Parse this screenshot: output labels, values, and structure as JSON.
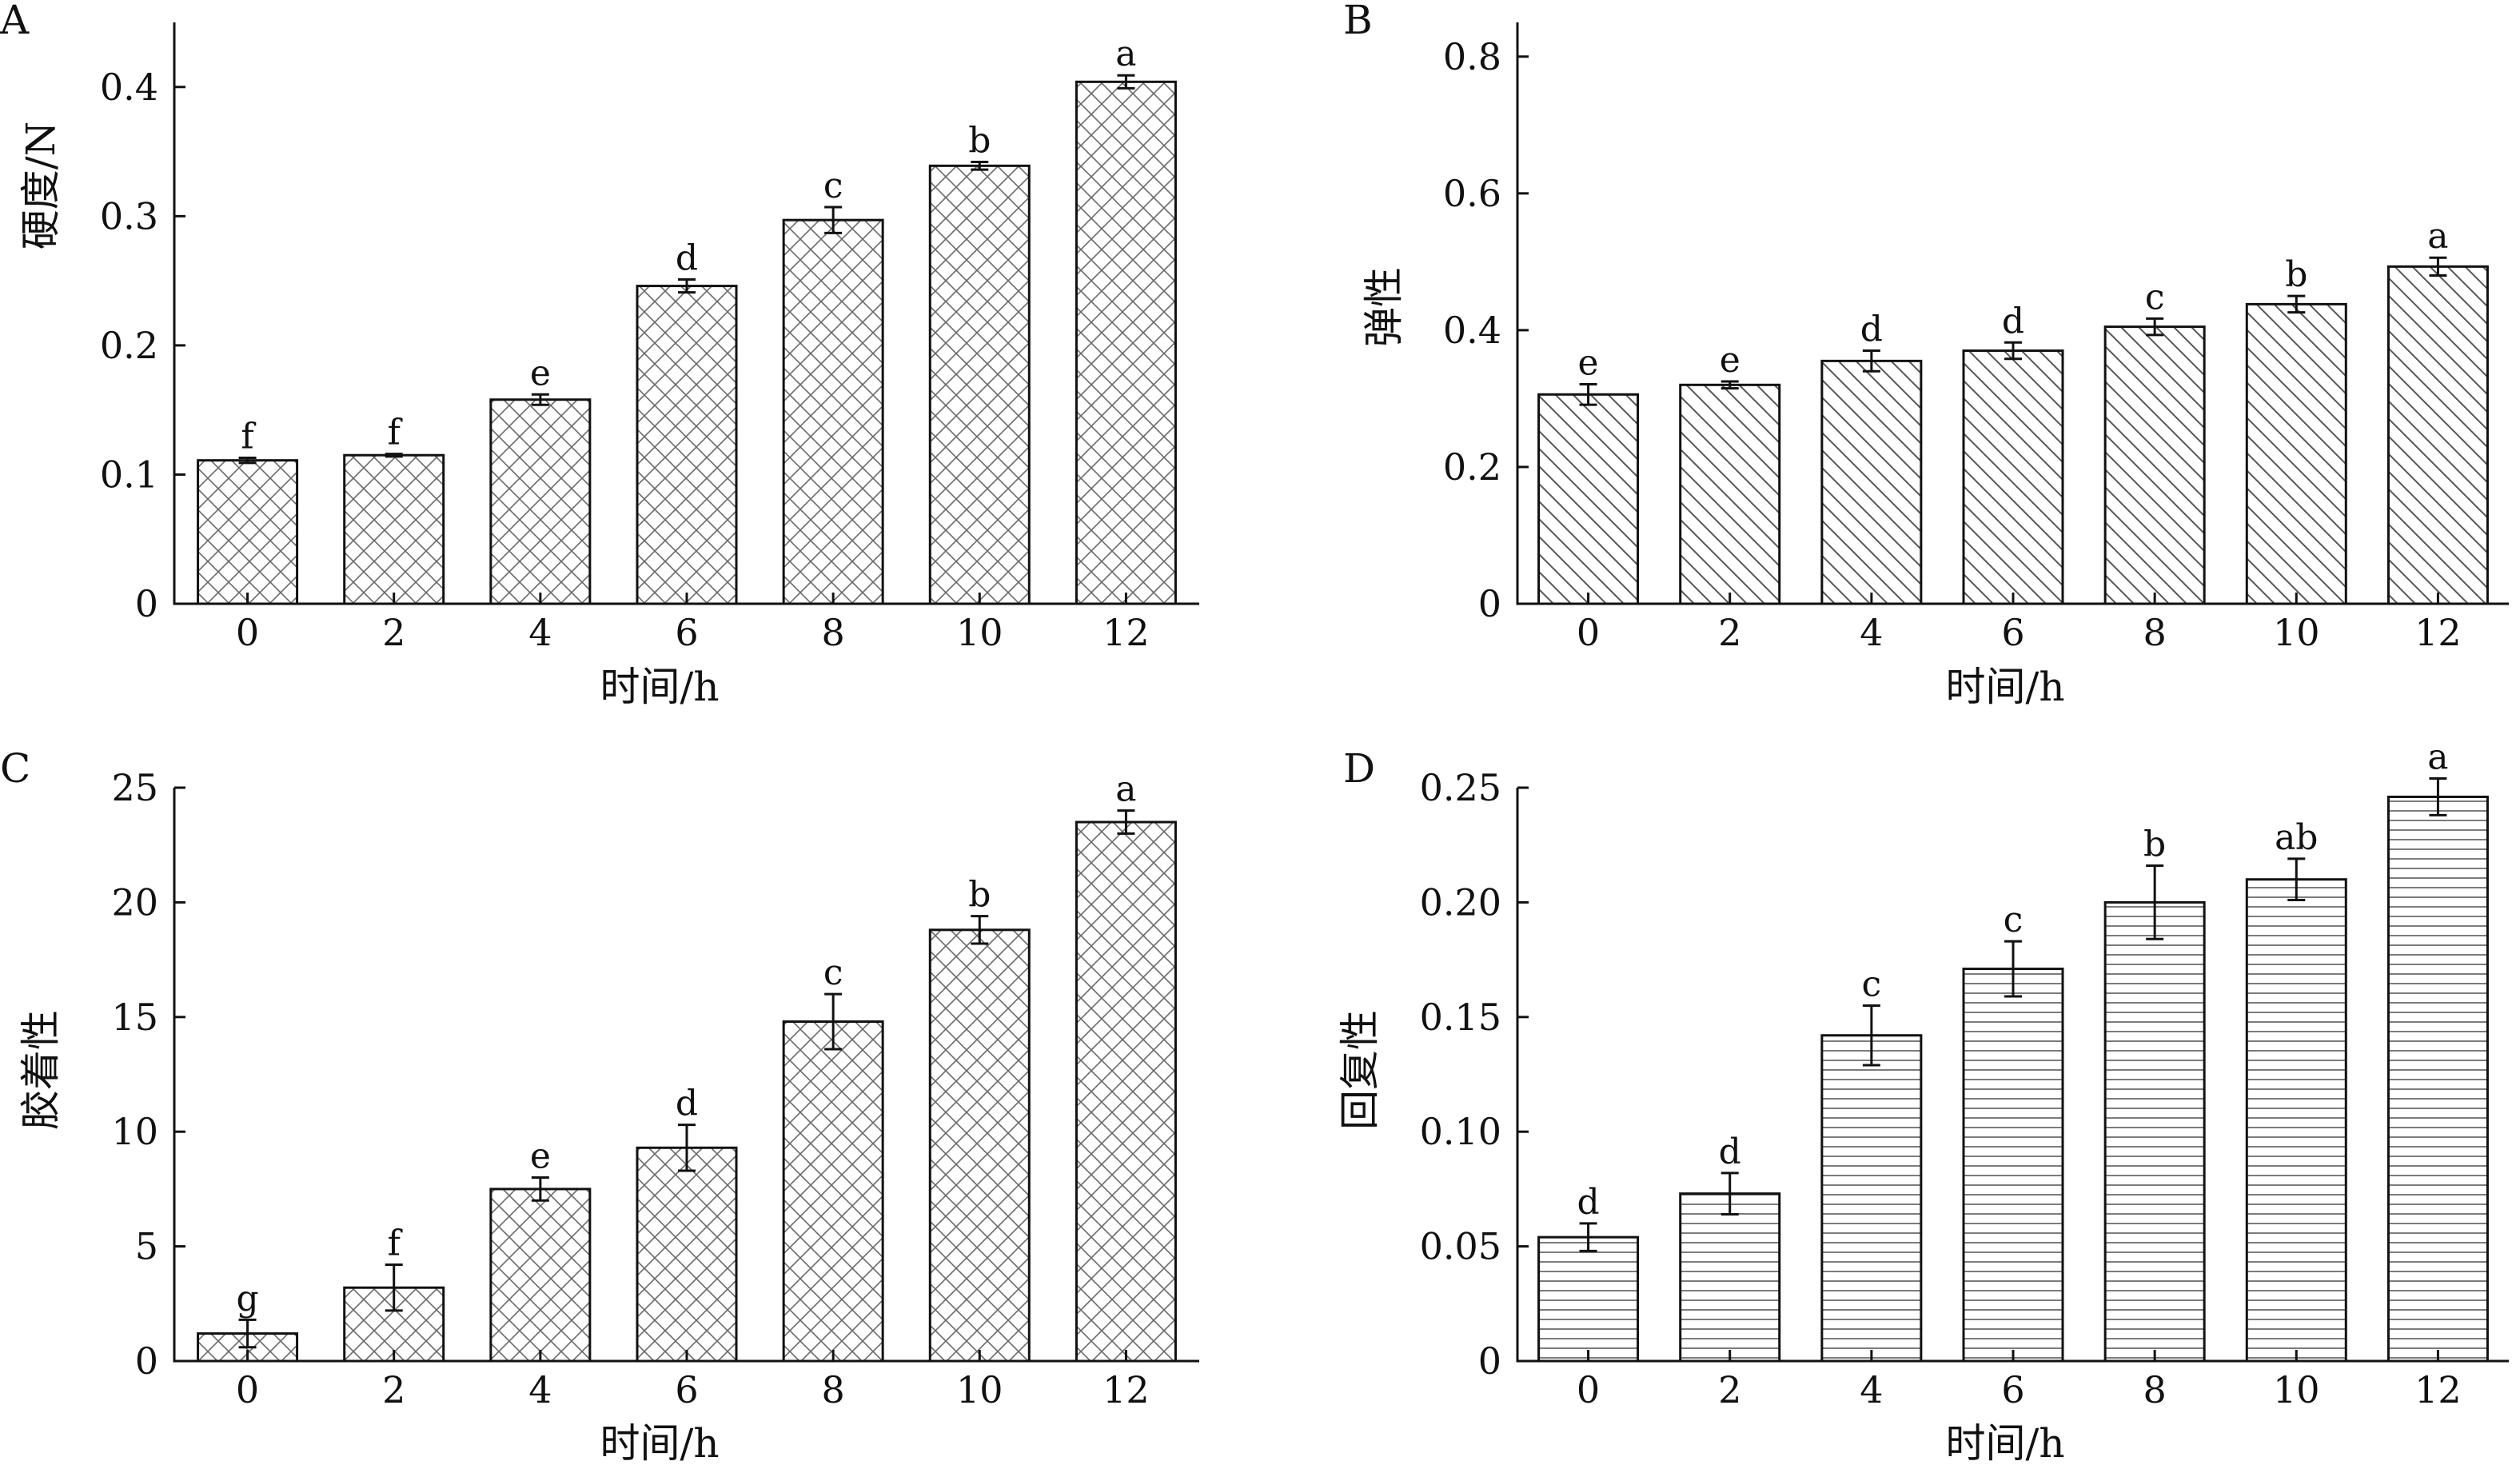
{
  "chart_data": [
    {
      "panel": "A",
      "type": "bar",
      "xlabel": "时间/h",
      "ylabel": "硬度/N",
      "categories": [
        "0",
        "2",
        "4",
        "6",
        "8",
        "10",
        "12"
      ],
      "values": [
        0.111,
        0.115,
        0.158,
        0.246,
        0.297,
        0.339,
        0.404
      ],
      "errors": [
        0.002,
        0.001,
        0.004,
        0.005,
        0.01,
        0.003,
        0.005
      ],
      "labels": [
        "f",
        "f",
        "e",
        "d",
        "c",
        "b",
        "a"
      ],
      "ylim": [
        0,
        0.45
      ],
      "yticks": [
        0,
        0.1,
        0.2,
        0.3,
        0.4
      ],
      "ytick_labels": [
        "0",
        "0.1",
        "0.2",
        "0.3",
        "0.4"
      ],
      "pattern": "crosshatch",
      "grid": false
    },
    {
      "panel": "B",
      "type": "bar",
      "xlabel": "时间/h",
      "ylabel": "弹性",
      "categories": [
        "0",
        "2",
        "4",
        "6",
        "8",
        "10",
        "12"
      ],
      "values": [
        0.306,
        0.32,
        0.355,
        0.37,
        0.405,
        0.438,
        0.493
      ],
      "errors": [
        0.015,
        0.005,
        0.015,
        0.012,
        0.012,
        0.012,
        0.013
      ],
      "labels": [
        "e",
        "e",
        "d",
        "d",
        "c",
        "b",
        "a"
      ],
      "ylim": [
        0,
        0.85
      ],
      "yticks": [
        0,
        0.2,
        0.4,
        0.6,
        0.8
      ],
      "ytick_labels": [
        "0",
        "0.2",
        "0.4",
        "0.6",
        "0.8"
      ],
      "pattern": "diagonal",
      "grid": false
    },
    {
      "panel": "C",
      "type": "bar",
      "xlabel": "时间/h",
      "ylabel": "胶着性",
      "categories": [
        "0",
        "2",
        "4",
        "6",
        "8",
        "10",
        "12"
      ],
      "values": [
        1.2,
        3.2,
        7.5,
        9.3,
        14.8,
        18.8,
        23.5
      ],
      "errors": [
        0.6,
        1.0,
        0.5,
        1.0,
        1.2,
        0.6,
        0.5
      ],
      "labels": [
        "g",
        "f",
        "e",
        "d",
        "c",
        "b",
        "a"
      ],
      "ylim": [
        0,
        25
      ],
      "yticks": [
        0,
        5,
        10,
        15,
        20,
        25
      ],
      "ytick_labels": [
        "0",
        "5",
        "10",
        "15",
        "20",
        "25"
      ],
      "pattern": "crosshatch",
      "grid": false
    },
    {
      "panel": "D",
      "type": "bar",
      "xlabel": "时间/h",
      "ylabel": "回复性",
      "categories": [
        "0",
        "2",
        "4",
        "6",
        "8",
        "10",
        "12"
      ],
      "values": [
        0.054,
        0.073,
        0.142,
        0.171,
        0.2,
        0.21,
        0.246
      ],
      "errors": [
        0.006,
        0.009,
        0.013,
        0.012,
        0.016,
        0.009,
        0.008
      ],
      "labels": [
        "d",
        "d",
        "c",
        "c",
        "b",
        "ab",
        "a"
      ],
      "ylim": [
        0,
        0.25
      ],
      "yticks": [
        0,
        0.05,
        0.1,
        0.15,
        0.2,
        0.25
      ],
      "ytick_labels": [
        "0",
        "0.05",
        "0.10",
        "0.15",
        "0.20",
        "0.25"
      ],
      "pattern": "horizontal",
      "grid": false
    }
  ]
}
